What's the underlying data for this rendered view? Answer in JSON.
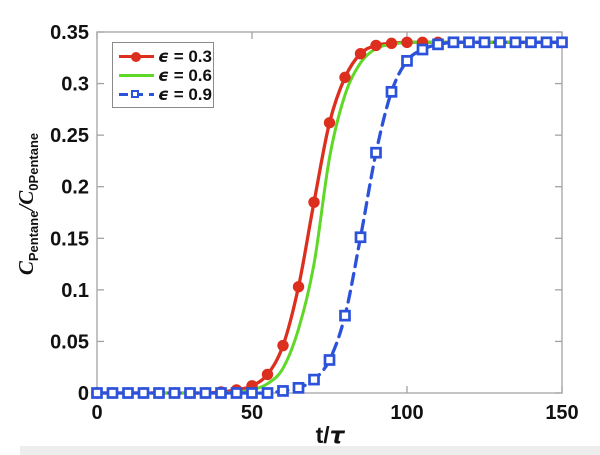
{
  "chart_data": {
    "type": "line",
    "title": "",
    "xlabel": "t/τ",
    "xlabel_parts": {
      "prefix": "t/",
      "symbol": "τ"
    },
    "ylabel": "C_Pentane/C_0Pentane",
    "ylabel_parts": {
      "base1": "C",
      "sub1": "Pentane",
      "base2": "/C",
      "sub2": "0Pentane"
    },
    "xlim": [
      0,
      150
    ],
    "ylim": [
      0,
      0.35
    ],
    "grid": false,
    "legend_position": "top-left",
    "axis_color": "#a3a3a3",
    "text_color": "#111111",
    "xticks": {
      "values": [
        0,
        50,
        100,
        150
      ],
      "labels": [
        "0",
        "50",
        "100",
        "150"
      ]
    },
    "yticks": {
      "values": [
        0,
        0.05,
        0.1,
        0.15,
        0.2,
        0.25,
        0.3,
        0.35
      ],
      "labels": [
        "0",
        "0.05",
        "0.1",
        "0.15",
        "0.2",
        "0.25",
        "0.3",
        "0.35"
      ]
    },
    "x": [
      0,
      5,
      10,
      15,
      20,
      25,
      30,
      35,
      40,
      45,
      50,
      55,
      60,
      65,
      70,
      75,
      80,
      85,
      90,
      95,
      100,
      105,
      110,
      115,
      120,
      125,
      130,
      135,
      140,
      145,
      150
    ],
    "series": [
      {
        "name": "ϵ = 0.3",
        "legend_symbol": "ϵ",
        "legend_text": " = 0.3",
        "color": "#dc2f1e",
        "linestyle": "solid",
        "marker": "filled-circle",
        "values": [
          0,
          0,
          0,
          0,
          0,
          0,
          0,
          0,
          0.001,
          0.003,
          0.007,
          0.018,
          0.046,
          0.103,
          0.185,
          0.262,
          0.306,
          0.329,
          0.337,
          0.339,
          0.34,
          0.34,
          0.34,
          0.34,
          0.34,
          0.34,
          0.34,
          0.34,
          0.34,
          0.34,
          0.34
        ]
      },
      {
        "name": "ϵ = 0.6",
        "legend_symbol": "ϵ",
        "legend_text": " = 0.6",
        "color": "#5fd828",
        "linestyle": "solid",
        "marker": "none",
        "values": [
          0,
          0,
          0,
          0,
          0,
          0,
          0,
          0,
          0,
          0.001,
          0.003,
          0.009,
          0.024,
          0.062,
          0.125,
          0.228,
          0.289,
          0.32,
          0.334,
          0.338,
          0.34,
          0.34,
          0.34,
          0.34,
          0.34,
          0.34,
          0.34,
          0.34,
          0.34,
          0.34,
          0.34
        ]
      },
      {
        "name": "ϵ = 0.9",
        "legend_symbol": "ϵ",
        "legend_text": " = 0.9",
        "color": "#2c52dc",
        "linestyle": "dashed",
        "marker": "open-square",
        "values": [
          0,
          0,
          0,
          0,
          0,
          0,
          0,
          0,
          0,
          0,
          0,
          0,
          0.002,
          0.005,
          0.013,
          0.032,
          0.075,
          0.151,
          0.233,
          0.292,
          0.322,
          0.333,
          0.338,
          0.34,
          0.34,
          0.34,
          0.34,
          0.34,
          0.34,
          0.34,
          0.34
        ]
      }
    ]
  }
}
